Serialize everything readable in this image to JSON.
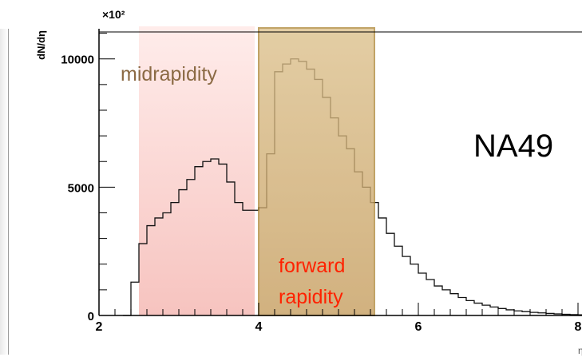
{
  "chart_data": {
    "type": "histogram",
    "title": "",
    "ylabel": "dN/dη",
    "xlabel": "η",
    "y_multiplier": "×10²",
    "xlim": [
      2,
      8.05
    ],
    "ylim": [
      0,
      11050
    ],
    "x_ticks": [
      {
        "value": 2,
        "label": "2"
      },
      {
        "value": 4,
        "label": "4"
      },
      {
        "value": 6,
        "label": "6"
      },
      {
        "value": 8,
        "label": "8"
      }
    ],
    "y_ticks": [
      {
        "value": 0,
        "label": "0"
      },
      {
        "value": 5000,
        "label": "5000"
      },
      {
        "value": 10000,
        "label": "10000"
      }
    ],
    "regions": [
      {
        "label": "midrapidity",
        "x0": 2.5,
        "x1": 3.95,
        "fill": "#f4b8b4",
        "text_color": "#8b6a44"
      },
      {
        "label_lines": [
          "forward",
          "rapidity"
        ],
        "x0": 4.0,
        "x1": 5.45,
        "fill": "#c9a264",
        "border": "#b08a3c",
        "text_color": "#ff2200"
      }
    ],
    "annotation": "NA49",
    "bins": {
      "x0": 2.3,
      "width": 0.1,
      "values": [
        0,
        1300,
        2800,
        3500,
        3800,
        4000,
        4400,
        4900,
        5300,
        5800,
        6000,
        6100,
        5900,
        5200,
        4400,
        4100,
        4100,
        4200,
        6300,
        9500,
        9800,
        10000,
        9900,
        9600,
        9200,
        8500,
        7700,
        7000,
        6500,
        5600,
        5000,
        4400,
        3800,
        3200,
        2700,
        2300,
        2000,
        1650,
        1400,
        1150,
        1000,
        850,
        700,
        580,
        480,
        400,
        330,
        270,
        220,
        180,
        150,
        120,
        100,
        80,
        60,
        45,
        35,
        25,
        18
      ]
    }
  }
}
